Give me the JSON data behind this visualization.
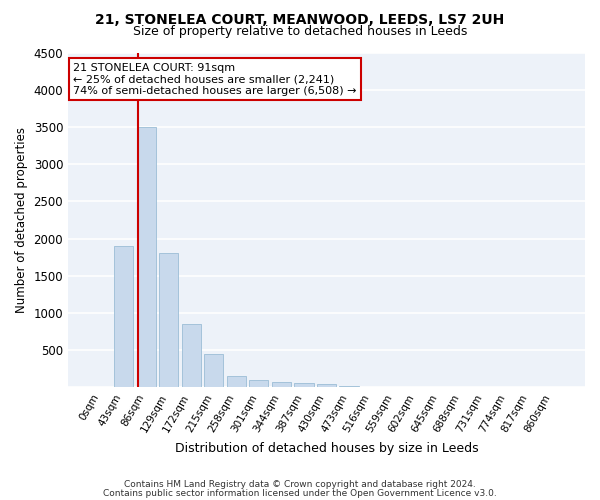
{
  "title": "21, STONELEA COURT, MEANWOOD, LEEDS, LS7 2UH",
  "subtitle": "Size of property relative to detached houses in Leeds",
  "xlabel": "Distribution of detached houses by size in Leeds",
  "ylabel": "Number of detached properties",
  "bar_color": "#c8d9ec",
  "bar_edge_color": "#9bbdd6",
  "background_color": "#edf2f9",
  "grid_color": "#ffffff",
  "vline_color": "#cc0000",
  "vline_x_index": 1.62,
  "annotation_text": "21 STONELEA COURT: 91sqm\n← 25% of detached houses are smaller (2,241)\n74% of semi-detached houses are larger (6,508) →",
  "annotation_box_color": "#ffffff",
  "annotation_box_edge": "#cc0000",
  "categories": [
    "0sqm",
    "43sqm",
    "86sqm",
    "129sqm",
    "172sqm",
    "215sqm",
    "258sqm",
    "301sqm",
    "344sqm",
    "387sqm",
    "430sqm",
    "473sqm",
    "516sqm",
    "559sqm",
    "602sqm",
    "645sqm",
    "688sqm",
    "731sqm",
    "774sqm",
    "817sqm",
    "860sqm"
  ],
  "values": [
    10,
    1900,
    3500,
    1800,
    850,
    450,
    150,
    105,
    75,
    60,
    50,
    12,
    8,
    5,
    3,
    2,
    2,
    1,
    1,
    1,
    1
  ],
  "ylim": [
    0,
    4500
  ],
  "yticks": [
    0,
    500,
    1000,
    1500,
    2000,
    2500,
    3000,
    3500,
    4000,
    4500
  ],
  "footnote1": "Contains HM Land Registry data © Crown copyright and database right 2024.",
  "footnote2": "Contains public sector information licensed under the Open Government Licence v3.0."
}
